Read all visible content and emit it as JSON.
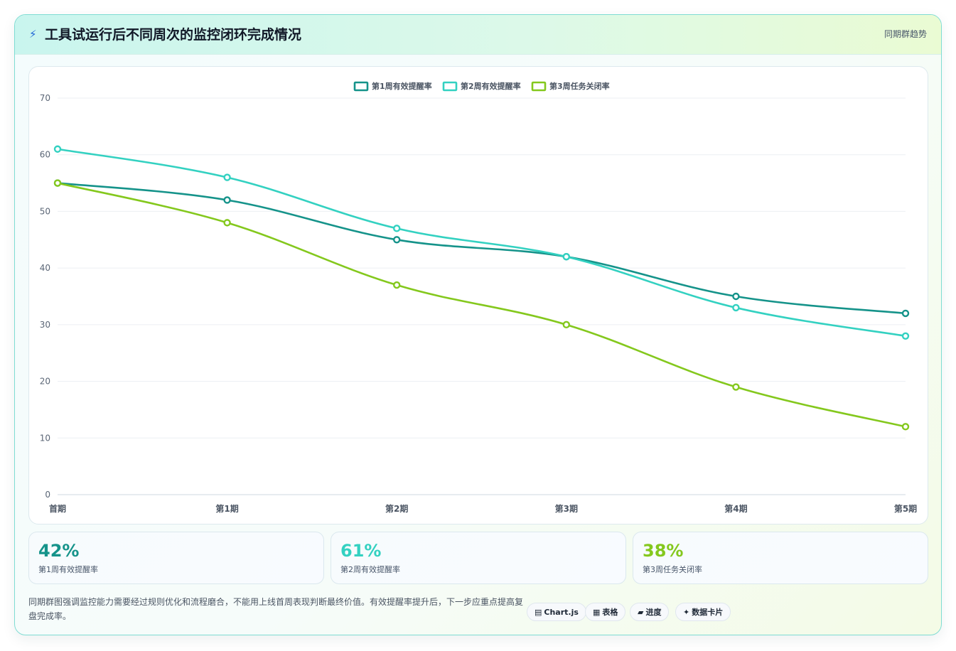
{
  "header": {
    "icon": "lightning-icon",
    "title": "工具试运行后不同周次的监控闭环完成情况",
    "tag": "同期群趋势"
  },
  "chart_data": {
    "type": "line",
    "categories": [
      "首期",
      "第1期",
      "第2期",
      "第3期",
      "第4期",
      "第5期"
    ],
    "ylim": [
      0,
      70
    ],
    "yticks": [
      0,
      10,
      20,
      30,
      40,
      50,
      60,
      70
    ],
    "grid": true,
    "legend_position": "top",
    "series": [
      {
        "name": "第1周有效提醒率",
        "color": "#15938a",
        "values": [
          55,
          52,
          45,
          42,
          35,
          32
        ]
      },
      {
        "name": "第2周有效提醒率",
        "color": "#33d1c1",
        "values": [
          61,
          56,
          47,
          42,
          33,
          28
        ]
      },
      {
        "name": "第3周任务关闭率",
        "color": "#84c81d",
        "values": [
          55,
          48,
          37,
          30,
          19,
          12
        ]
      }
    ]
  },
  "kpis": [
    {
      "value": "42%",
      "label": "第1周有效提醒率",
      "color": "#15938a"
    },
    {
      "value": "61%",
      "label": "第2周有效提醒率",
      "color": "#33d1c1"
    },
    {
      "value": "38%",
      "label": "第3周任务关闭率",
      "color": "#84c81d"
    }
  ],
  "footer": {
    "note": "同期群图强调监控能力需要经过规则优化和流程磨合，不能用上线首周表现判断最终价值。有效提醒率提升后，下一步应重点提高复盘完成率。",
    "chips": [
      {
        "icon": "chart-icon",
        "glyph": "▤",
        "label": "Chart.js"
      },
      {
        "icon": "table-icon",
        "glyph": "▦",
        "label": "表格"
      },
      {
        "icon": "progress-icon",
        "glyph": "▰",
        "label": "进度"
      },
      {
        "icon": "sparkle-icon",
        "glyph": "✦",
        "label": "数据卡片"
      }
    ]
  }
}
